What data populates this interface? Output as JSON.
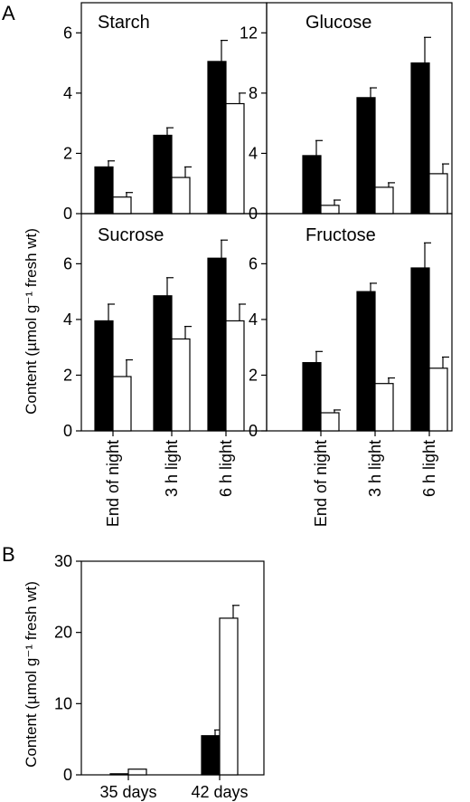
{
  "panel_labels": [
    "A",
    "B"
  ],
  "colors": {
    "series_dark": "#000000",
    "series_light": "#ffffff",
    "axis": "#000000"
  },
  "shared_labels": {
    "ylabel_A": "Content (µmol g⁻¹ fresh wt)",
    "ylabel_B": "Content (µmol g⁻¹ fresh wt)"
  },
  "chart_data": [
    {
      "type": "bar",
      "title": "Starch",
      "panel": "A",
      "categories": [
        "End of night",
        "3 h light",
        "6 h light"
      ],
      "ylim": [
        0,
        7
      ],
      "yticks": [
        0,
        2,
        4,
        6
      ],
      "series": [
        {
          "values": [
            1.55,
            2.6,
            5.05
          ],
          "errors": [
            0.2,
            0.25,
            0.7
          ],
          "fill": "#000000"
        },
        {
          "values": [
            0.55,
            1.2,
            3.65
          ],
          "errors": [
            0.15,
            0.35,
            0.35
          ],
          "fill": "#ffffff"
        }
      ]
    },
    {
      "type": "bar",
      "title": "Glucose",
      "panel": "A",
      "categories": [
        "End of night",
        "3 h light",
        "6 h light"
      ],
      "ylim": [
        0,
        14
      ],
      "yticks": [
        0,
        4,
        8,
        12
      ],
      "series": [
        {
          "values": [
            3.85,
            7.7,
            10.0
          ],
          "errors": [
            1.0,
            0.65,
            1.7
          ],
          "fill": "#000000"
        },
        {
          "values": [
            0.55,
            1.75,
            2.65
          ],
          "errors": [
            0.35,
            0.3,
            0.65
          ],
          "fill": "#ffffff"
        }
      ]
    },
    {
      "type": "bar",
      "title": "Sucrose",
      "panel": "A",
      "categories": [
        "End of night",
        "3 h light",
        "6 h light"
      ],
      "xticklabels": [
        "End of night",
        "3 h light",
        "6 h light"
      ],
      "ylim": [
        0,
        7.8
      ],
      "yticks": [
        0,
        2,
        4,
        6
      ],
      "series": [
        {
          "values": [
            3.95,
            4.85,
            6.2
          ],
          "errors": [
            0.6,
            0.65,
            0.65
          ],
          "fill": "#000000"
        },
        {
          "values": [
            1.95,
            3.3,
            3.95
          ],
          "errors": [
            0.6,
            0.45,
            0.6
          ],
          "fill": "#ffffff"
        }
      ]
    },
    {
      "type": "bar",
      "title": "Fructose",
      "panel": "A",
      "categories": [
        "End of night",
        "3 h light",
        "6 h light"
      ],
      "xticklabels": [
        "End of night",
        "3 h light",
        "6 h light"
      ],
      "ylim": [
        0,
        7.8
      ],
      "yticks": [
        0,
        2,
        4,
        6
      ],
      "series": [
        {
          "values": [
            2.45,
            5.0,
            5.85
          ],
          "errors": [
            0.4,
            0.3,
            0.9
          ],
          "fill": "#000000"
        },
        {
          "values": [
            0.65,
            1.7,
            2.25
          ],
          "errors": [
            0.1,
            0.2,
            0.4
          ],
          "fill": "#ffffff"
        }
      ]
    },
    {
      "type": "bar",
      "title": "",
      "panel": "B",
      "categories": [
        "35 days",
        "42 days"
      ],
      "xticklabels": [
        "35 days",
        "42 days"
      ],
      "ylim": [
        0,
        30
      ],
      "yticks": [
        0,
        10,
        20,
        30
      ],
      "series": [
        {
          "values": [
            0.15,
            5.5
          ],
          "errors": [
            0,
            0.8
          ],
          "fill": "#000000"
        },
        {
          "values": [
            0.8,
            22.0
          ],
          "errors": [
            0,
            1.8
          ],
          "fill": "#ffffff"
        }
      ]
    }
  ]
}
